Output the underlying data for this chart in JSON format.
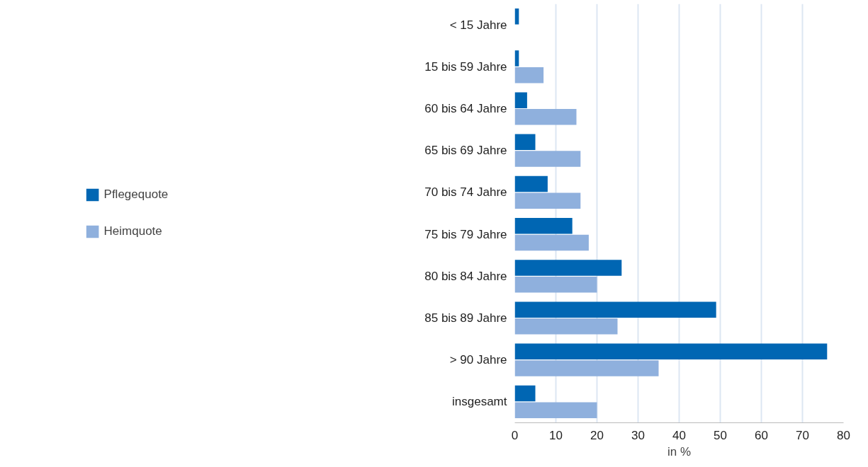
{
  "chart_data": {
    "type": "bar",
    "orientation": "horizontal",
    "xlabel": "in %",
    "categories": [
      "< 15 Jahre",
      "15 bis 59 Jahre",
      "60 bis 64 Jahre",
      "65 bis 69 Jahre",
      "70 bis 74 Jahre",
      "75 bis 79 Jahre",
      "80 bis 84 Jahre",
      "85 bis 89 Jahre",
      "> 90 Jahre",
      "insgesamt"
    ],
    "series": [
      {
        "name": "Pflegequote",
        "color": "#0066b3",
        "values": [
          1,
          1,
          3,
          5,
          8,
          14,
          26,
          49,
          76,
          5
        ]
      },
      {
        "name": "Heimquote",
        "color": "#8fb0dd",
        "values": [
          0,
          7,
          15,
          16,
          16,
          18,
          20,
          25,
          35,
          20
        ]
      }
    ],
    "xlim": [
      0,
      80
    ],
    "xticks": [
      0,
      10,
      20,
      30,
      40,
      50,
      60,
      70,
      80
    ],
    "grid": "x",
    "legend": "left"
  }
}
